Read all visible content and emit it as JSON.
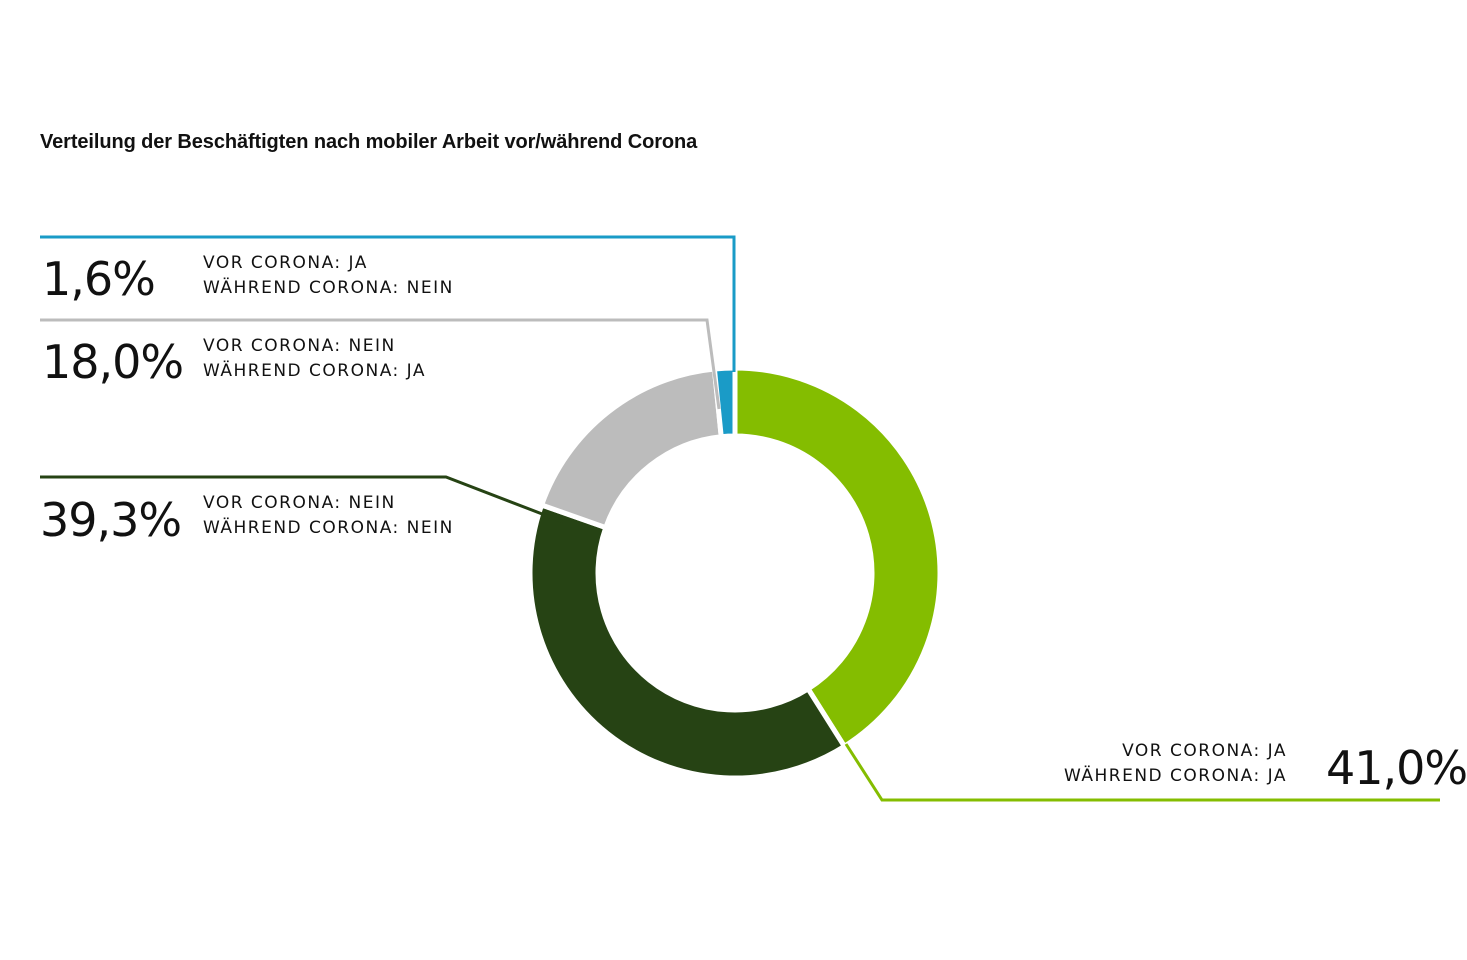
{
  "chart_data": {
    "type": "pie",
    "title": "Verteilung der Beschäftigten nach mobiler Arbeit vor/während Corona",
    "donut": true,
    "slices": [
      {
        "value": 41.0,
        "label": "41,0%",
        "line1": "VOR CORONA: JA",
        "line2": "WÄHREND CORONA: JA",
        "color": "#84bd00"
      },
      {
        "value": 39.3,
        "label": "39,3%",
        "line1": "VOR CORONA: NEIN",
        "line2": "WÄHREND CORONA: NEIN",
        "color": "#264314"
      },
      {
        "value": 18.0,
        "label": "18,0%",
        "line1": "VOR CORONA: NEIN",
        "line2": "WÄHREND CORONA: JA",
        "color": "#bcbcbc"
      },
      {
        "value": 1.6,
        "label": "1,6%",
        "line1": "VOR CORONA: JA",
        "line2": "WÄHREND CORONA: NEIN",
        "color": "#1a9bc7"
      }
    ]
  }
}
